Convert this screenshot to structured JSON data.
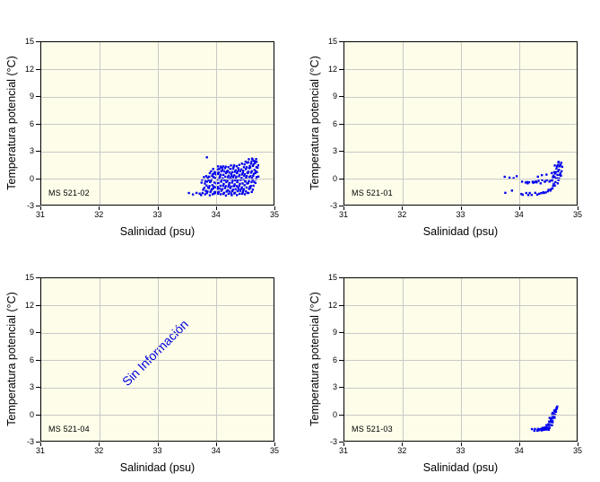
{
  "chart_data": {
    "type": "scatter",
    "layout": "2x2 grid of T-S diagrams",
    "xlabel": "Salinidad (psu)",
    "ylabel": "Temperatura potencial (°C)",
    "xlim": [
      31,
      35
    ],
    "ylim": [
      -3,
      15
    ],
    "x_ticks": [
      31,
      32,
      33,
      34,
      35
    ],
    "y_ticks": [
      15,
      12,
      9,
      6,
      3,
      0,
      -3
    ],
    "grid": true,
    "colors": {
      "point": "#0000EE",
      "plot_bg": "#FDFDE9",
      "grid": "#C9C9C9",
      "frame": "#000000",
      "no_data_text": "#0000DD",
      "text": "#000000"
    },
    "panels": [
      {
        "station": "MS 521-02",
        "position": "top-left",
        "cols": [
          [
            33.56,
            [
              -1.8
            ]
          ],
          [
            33.62,
            [
              -1.82
            ]
          ],
          [
            33.67,
            [
              -1.75
            ]
          ],
          [
            33.74,
            [
              -1.85,
              -1.78
            ]
          ],
          [
            33.78,
            [
              -1.8,
              -1.3,
              -0.6,
              -0.15
            ]
          ],
          [
            33.82,
            [
              -1.85,
              -1.55,
              -1.1,
              -0.7,
              -0.3,
              0.05
            ]
          ],
          [
            33.86,
            [
              -1.8,
              -1.5,
              -1.15,
              -0.8,
              -0.45,
              -0.1,
              0.2,
              2.2
            ]
          ],
          [
            33.9,
            [
              -1.88,
              -1.6,
              -1.25,
              -0.9,
              -0.55,
              -0.2,
              0.1,
              0.4
            ]
          ],
          [
            33.94,
            [
              -1.8,
              -1.5,
              -1.2,
              -0.85,
              -0.5,
              -0.15,
              0.15,
              0.45,
              0.7
            ]
          ],
          [
            33.98,
            [
              -1.85,
              -1.55,
              -1.25,
              -0.9,
              -0.55,
              -0.2,
              0.1,
              0.4,
              0.7,
              0.95
            ]
          ],
          [
            34.02,
            [
              -1.8,
              -1.6,
              -1.3,
              -1.0,
              -0.65,
              -0.3,
              0.0,
              0.3,
              0.6,
              0.9
            ]
          ],
          [
            34.06,
            [
              -1.88,
              -1.55,
              -1.25,
              -0.95,
              -0.6,
              -0.25,
              0.05,
              0.35,
              0.65,
              0.95,
              1.15
            ]
          ],
          [
            34.1,
            [
              -1.8,
              -1.5,
              -1.2,
              -0.9,
              -0.55,
              -0.2,
              0.1,
              0.4,
              0.7,
              1.0,
              1.25
            ]
          ],
          [
            34.14,
            [
              -1.85,
              -1.6,
              -1.3,
              -1.0,
              -0.65,
              -0.3,
              0.0,
              0.3,
              0.6,
              0.9,
              1.2
            ]
          ],
          [
            34.18,
            [
              -1.9,
              -1.55,
              -1.25,
              -0.9,
              -0.55,
              -0.2,
              0.1,
              0.4,
              0.7,
              1.0,
              1.3
            ]
          ],
          [
            34.22,
            [
              -1.8,
              -1.6,
              -1.35,
              -1.05,
              -0.7,
              -0.35,
              -0.05,
              0.25,
              0.55,
              0.85,
              1.15
            ]
          ],
          [
            34.26,
            [
              -1.85,
              -1.5,
              -1.2,
              -0.9,
              -0.6,
              -0.25,
              0.05,
              0.35,
              0.65,
              0.95,
              1.25
            ]
          ],
          [
            34.3,
            [
              -1.9,
              -1.55,
              -1.25,
              -0.95,
              -0.65,
              -0.3,
              0.0,
              0.3,
              0.6,
              0.9,
              1.2
            ]
          ],
          [
            34.34,
            [
              -1.8,
              -1.6,
              -1.3,
              -1.0,
              -0.7,
              -0.35,
              -0.05,
              0.25,
              0.55,
              0.85,
              1.3
            ]
          ],
          [
            34.38,
            [
              -1.85,
              -1.5,
              -1.2,
              -0.9,
              -0.55,
              -0.2,
              0.1,
              0.4,
              0.7,
              1.0,
              1.35
            ]
          ],
          [
            34.42,
            [
              -1.8,
              -1.55,
              -1.25,
              -0.95,
              -0.6,
              -0.25,
              0.05,
              0.35,
              0.65,
              0.95,
              1.4
            ]
          ],
          [
            34.46,
            [
              -1.88,
              -1.6,
              -1.3,
              -1.0,
              -0.65,
              -0.3,
              0.0,
              0.3,
              0.6,
              0.9,
              1.45
            ]
          ],
          [
            34.5,
            [
              -1.8,
              -1.5,
              -1.2,
              -0.85,
              -0.5,
              -0.15,
              0.15,
              0.45,
              0.75,
              1.05,
              1.5
            ]
          ],
          [
            34.54,
            [
              -1.75,
              -1.45,
              -1.1,
              -0.75,
              -0.4,
              -0.05,
              0.25,
              0.55,
              0.85,
              1.2,
              1.6,
              1.85
            ]
          ],
          [
            34.58,
            [
              -1.7,
              -1.35,
              -1.0,
              -0.65,
              -0.3,
              0.05,
              0.4,
              0.7,
              1.0,
              1.35,
              1.7,
              1.95
            ]
          ],
          [
            34.62,
            [
              -1.55,
              -1.2,
              -0.85,
              -0.5,
              -0.15,
              0.2,
              0.5,
              0.8,
              1.1,
              1.45,
              1.8,
              2.05
            ]
          ],
          [
            34.66,
            [
              -1.25,
              -0.9,
              -0.55,
              -0.2,
              0.15,
              0.5,
              0.85,
              1.2,
              1.5,
              1.8,
              2.1
            ]
          ],
          [
            34.7,
            [
              -0.6,
              -0.25,
              0.1,
              0.45,
              0.8,
              1.15,
              1.5,
              1.8,
              2.0
            ]
          ],
          [
            34.73,
            [
              0.2,
              0.6,
              1.0,
              1.4,
              1.7
            ]
          ]
        ]
      },
      {
        "station": "MS 521-01",
        "position": "top-right",
        "cols": [
          [
            33.78,
            [
              0.0,
              -1.65
            ]
          ],
          [
            33.84,
            [
              -0.05
            ]
          ],
          [
            33.9,
            [
              0.02,
              -1.45
            ]
          ],
          [
            33.97,
            [
              0.06
            ]
          ],
          [
            34.04,
            [
              -1.78
            ]
          ],
          [
            34.08,
            [
              -0.5,
              -1.82
            ]
          ],
          [
            34.12,
            [
              -0.55,
              -1.8
            ]
          ],
          [
            34.16,
            [
              -0.45,
              -0.68,
              -1.85
            ]
          ],
          [
            34.2,
            [
              -0.52,
              -1.8
            ]
          ],
          [
            34.24,
            [
              -0.42,
              -0.62,
              -1.83
            ]
          ],
          [
            34.28,
            [
              -0.5,
              -1.78
            ]
          ],
          [
            34.32,
            [
              -0.38,
              -0.58,
              -1.8,
              0.1
            ]
          ],
          [
            34.36,
            [
              -0.45,
              -1.75
            ]
          ],
          [
            34.4,
            [
              -0.32,
              -0.55,
              -1.72,
              0.18
            ]
          ],
          [
            34.44,
            [
              -0.42,
              -1.68,
              -1.62
            ]
          ],
          [
            34.48,
            [
              -0.28,
              -0.5,
              -1.6,
              0.28
            ]
          ],
          [
            34.52,
            [
              -0.35,
              -1.52,
              -1.45
            ]
          ],
          [
            34.56,
            [
              -0.22,
              -0.45,
              -1.35,
              -1.28,
              0.4
            ]
          ],
          [
            34.6,
            [
              -1.15,
              -0.95,
              -0.6,
              -0.32,
              -0.05,
              0.25,
              0.55
            ]
          ],
          [
            34.64,
            [
              -0.8,
              -0.5,
              -0.2,
              0.1,
              0.4,
              0.7,
              1.0,
              1.25
            ]
          ],
          [
            34.68,
            [
              -0.6,
              -0.3,
              0.0,
              0.3,
              0.6,
              0.9,
              1.2,
              1.45,
              1.65
            ]
          ],
          [
            34.71,
            [
              -0.35,
              -0.05,
              0.25,
              0.55,
              0.85,
              1.15,
              1.45,
              1.7
            ]
          ],
          [
            34.74,
            [
              0.3,
              0.7,
              1.1,
              1.4,
              1.6
            ]
          ]
        ]
      },
      {
        "station": "MS 521-04",
        "position": "bottom-left",
        "no_data_label": "Sin Información",
        "cols": []
      },
      {
        "station": "MS 521-03",
        "position": "bottom-right",
        "cols": [
          [
            34.25,
            [
              -1.8
            ]
          ],
          [
            34.28,
            [
              -1.85,
              -1.75
            ]
          ],
          [
            34.31,
            [
              -1.8
            ]
          ],
          [
            34.34,
            [
              -1.86,
              -1.78,
              -1.7
            ]
          ],
          [
            34.37,
            [
              -1.82,
              -1.74
            ]
          ],
          [
            34.4,
            [
              -1.86,
              -1.78,
              -1.66
            ]
          ],
          [
            34.43,
            [
              -1.8,
              -1.7,
              -1.58
            ]
          ],
          [
            34.46,
            [
              -1.8,
              -1.72,
              -1.6,
              -1.46
            ]
          ],
          [
            34.49,
            [
              -1.76,
              -1.64,
              -1.5,
              -1.32
            ]
          ],
          [
            34.52,
            [
              -1.7,
              -1.54,
              -1.36,
              -1.12,
              -0.92
            ]
          ],
          [
            34.55,
            [
              -1.5,
              -1.26,
              -1.02,
              -0.76,
              -0.52
            ]
          ],
          [
            34.58,
            [
              -1.2,
              -0.95,
              -0.7,
              -0.45,
              -0.22,
              0.0
            ]
          ],
          [
            34.6,
            [
              -0.8,
              -0.56,
              -0.32,
              -0.06,
              0.18
            ]
          ],
          [
            34.62,
            [
              -0.46,
              -0.22,
              0.04,
              0.28,
              0.48
            ]
          ],
          [
            34.64,
            [
              -0.1,
              0.14,
              0.38,
              0.58
            ]
          ],
          [
            34.66,
            [
              0.3,
              0.54,
              0.7
            ]
          ],
          [
            34.68,
            [
              0.6
            ]
          ]
        ]
      }
    ]
  }
}
